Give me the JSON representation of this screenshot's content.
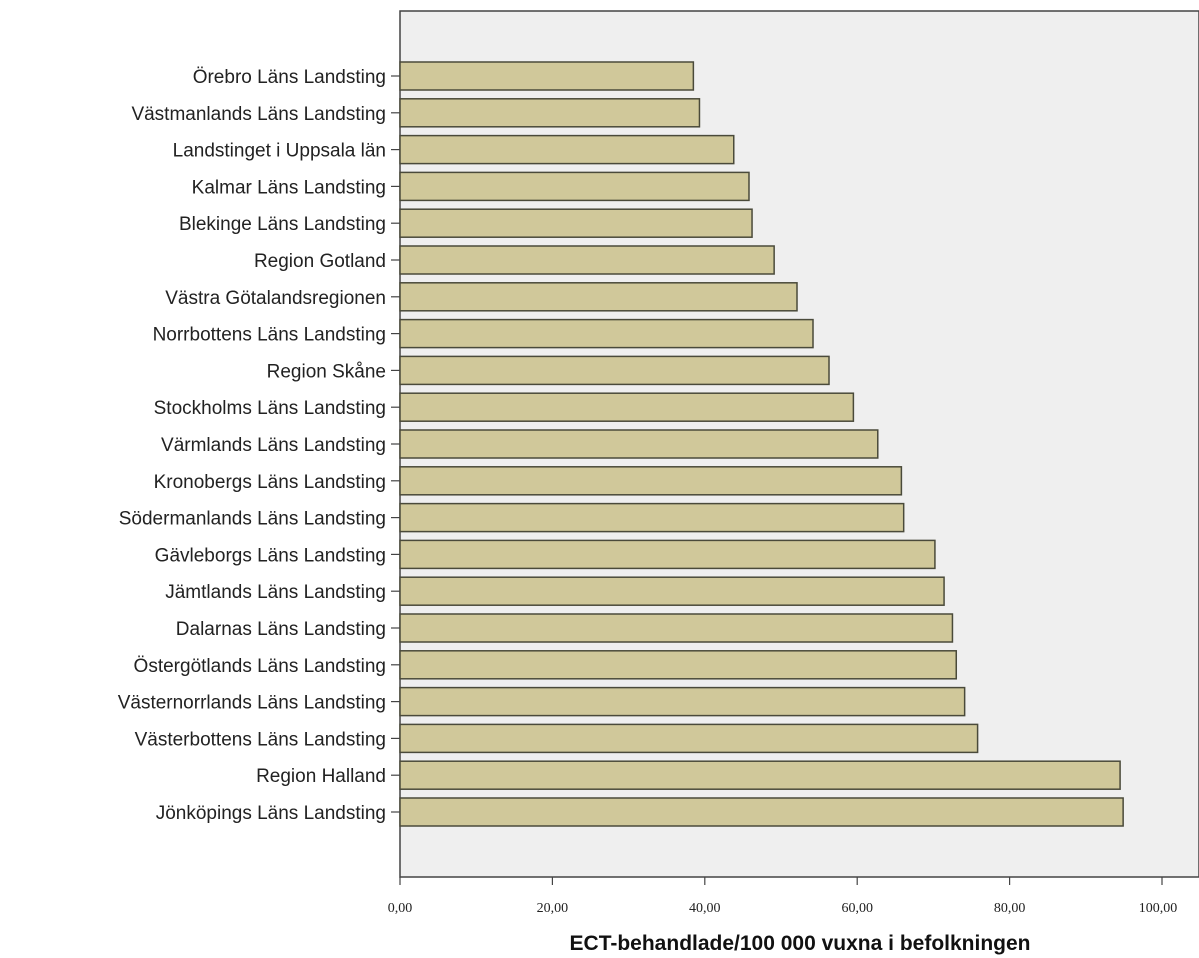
{
  "chart_data": {
    "type": "bar",
    "orientation": "horizontal",
    "categories": [
      "Örebro Läns Landsting",
      "Västmanlands Läns Landsting",
      "Landstinget i Uppsala län",
      "Kalmar Läns Landsting",
      "Blekinge Läns Landsting",
      "Region Gotland",
      "Västra Götalandsregionen",
      "Norrbottens Läns Landsting",
      "Region Skåne",
      "Stockholms Läns Landsting",
      "Värmlands Läns Landsting",
      "Kronobergs Läns Landsting",
      "Södermanlands Läns Landsting",
      "Gävleborgs Läns Landsting",
      "Jämtlands Läns Landsting",
      "Dalarnas Läns Landsting",
      "Östergötlands Läns Landsting",
      "Västernorrlands Läns Landsting",
      "Västerbottens Läns Landsting",
      "Region Halland",
      "Jönköpings Läns Landsting"
    ],
    "values": [
      38.5,
      39.3,
      43.8,
      45.8,
      46.2,
      49.1,
      52.1,
      54.2,
      56.3,
      59.5,
      62.7,
      65.8,
      66.1,
      70.2,
      71.4,
      72.5,
      73.0,
      74.1,
      75.8,
      94.5,
      94.9
    ],
    "xlabel": "ECT-behandlade/100 000 vuxna i befolkningen",
    "ylabel": "",
    "xlim": [
      0,
      100
    ],
    "ticks": [
      "0,00",
      "20,00",
      "40,00",
      "60,00",
      "80,00",
      "100,00"
    ],
    "tick_values": [
      0,
      20,
      40,
      60,
      80,
      100
    ],
    "grid": false,
    "colors": {
      "bar_fill": "#d0c89a",
      "bar_stroke": "#4a4a3a",
      "plot_background": "#efefef",
      "axis": "#444444"
    }
  }
}
